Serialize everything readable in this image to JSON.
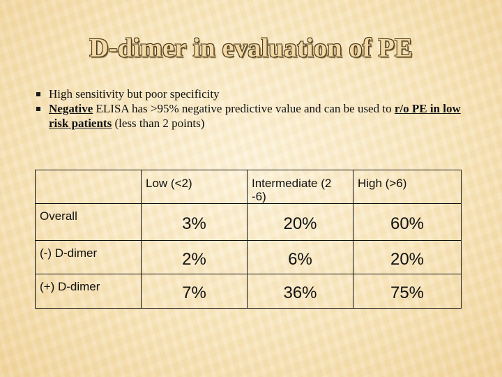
{
  "slide": {
    "title": "D-dimer in evaluation of PE",
    "bullet1": "High sensitivity but poor specificity",
    "bullet2_a": "Negative",
    "bullet2_b": " ELISA has >95% negative predictive value and can be used to ",
    "bullet2_c": "r/o PE in low risk patients",
    "bullet2_d": " (less than 2 points)"
  },
  "table": {
    "headers": [
      "",
      "Low (<2)",
      "Intermediate (2 -6)",
      "High (>6)"
    ],
    "rows": [
      {
        "label": "Overall",
        "values": [
          "3%",
          "20%",
          "60%"
        ]
      },
      {
        "label": "(-) D-dimer",
        "values": [
          "2%",
          "6%",
          "20%"
        ]
      },
      {
        "label": "(+) D-dimer",
        "values": [
          "7%",
          "36%",
          "75%"
        ]
      }
    ]
  }
}
